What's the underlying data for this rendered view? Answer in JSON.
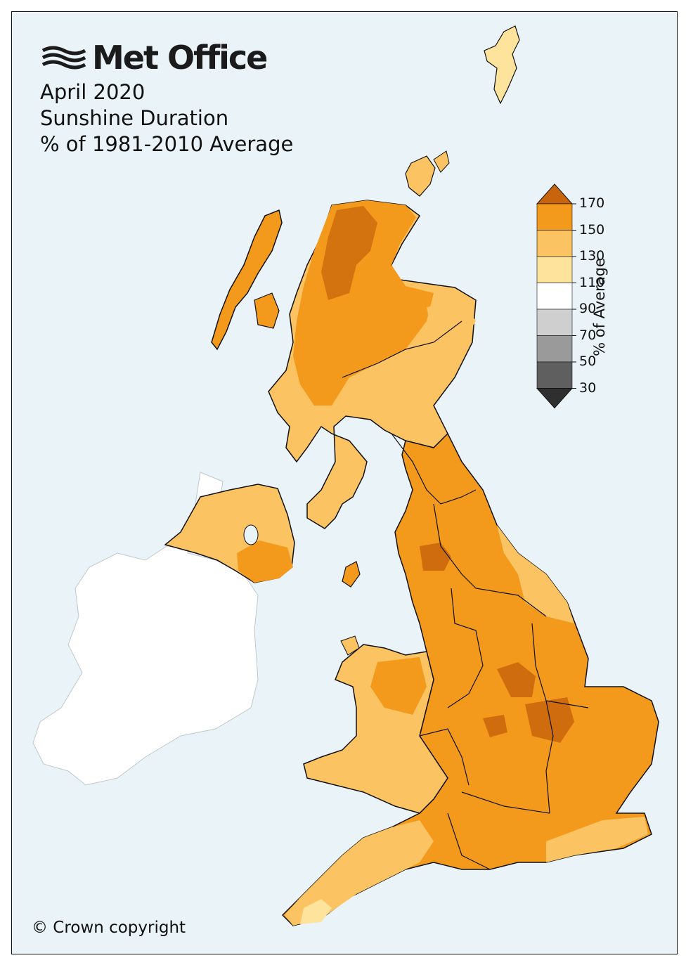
{
  "logo": {
    "brand": "Met Office",
    "icon": "met-office-wave-logo-icon"
  },
  "title": {
    "line1": "April 2020",
    "line2": "Sunshine Duration",
    "line3": "% of 1981-2010 Average"
  },
  "copyright": "© Crown copyright",
  "legend": {
    "title": "% of Average",
    "ticks": [
      "170",
      "150",
      "130",
      "110",
      "90",
      "70",
      "50",
      "30"
    ],
    "bins": [
      {
        "range": ">170",
        "color": "#c8650c"
      },
      {
        "range": "150-170",
        "color": "#f39a1c"
      },
      {
        "range": "130-150",
        "color": "#fbc361"
      },
      {
        "range": "110-130",
        "color": "#fde39c"
      },
      {
        "range": "90-110",
        "color": "#ffffff"
      },
      {
        "range": "70-90",
        "color": "#cfcfcf"
      },
      {
        "range": "50-70",
        "color": "#9a9a9a"
      },
      {
        "range": "30-50",
        "color": "#5f5f5f"
      },
      {
        "range": "<30",
        "color": "#2f2f2f"
      }
    ]
  },
  "colors": {
    "sea": "#eaf3f8",
    "ireland": "#ffffff",
    "border": "#111111"
  }
}
